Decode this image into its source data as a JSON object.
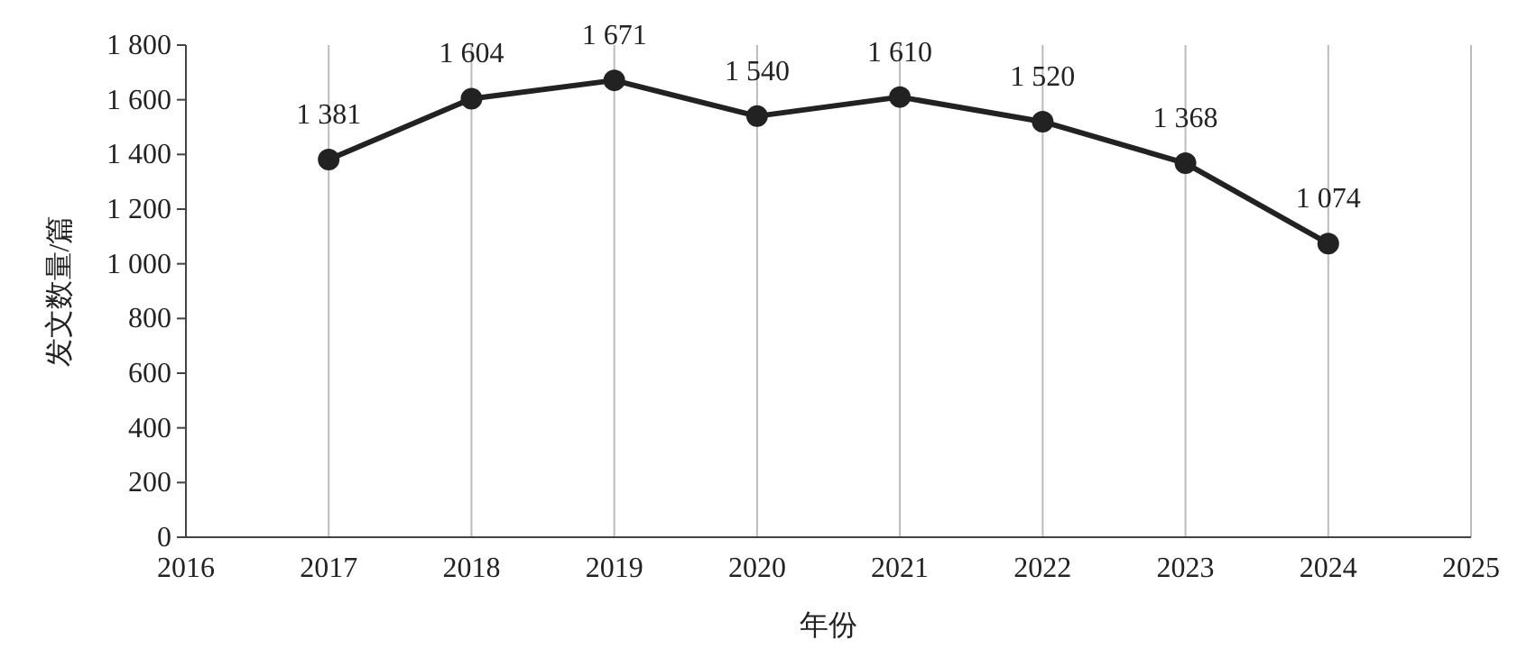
{
  "chart_data": {
    "type": "line",
    "xlabel": "年份",
    "ylabel": "发文数量/篇",
    "x": [
      2017,
      2018,
      2019,
      2020,
      2021,
      2022,
      2023,
      2024
    ],
    "series": [
      {
        "color": "#222222",
        "values": [
          1381,
          1604,
          1671,
          1540,
          1610,
          1520,
          1368,
          1074
        ],
        "value_labels": [
          "1 381",
          "1 604",
          "1 671",
          "1 540",
          "1 610",
          "1 520",
          "1 368",
          "1 074"
        ]
      }
    ],
    "xlim": [
      2016,
      2025
    ],
    "xticks": [
      2016,
      2017,
      2018,
      2019,
      2020,
      2021,
      2022,
      2023,
      2024,
      2025
    ],
    "ylim": [
      0,
      1800
    ],
    "yticks": [
      0,
      200,
      400,
      600,
      800,
      {
        "value": 1000,
        "label": "1 000"
      },
      {
        "value": 1200,
        "label": "1 200"
      },
      {
        "value": 1400,
        "label": "1 400"
      },
      {
        "value": 1600,
        "label": "1 600"
      },
      {
        "value": 1800,
        "label": "1 800"
      }
    ],
    "grid": "x",
    "marker": "circle",
    "line_style": "solid"
  }
}
